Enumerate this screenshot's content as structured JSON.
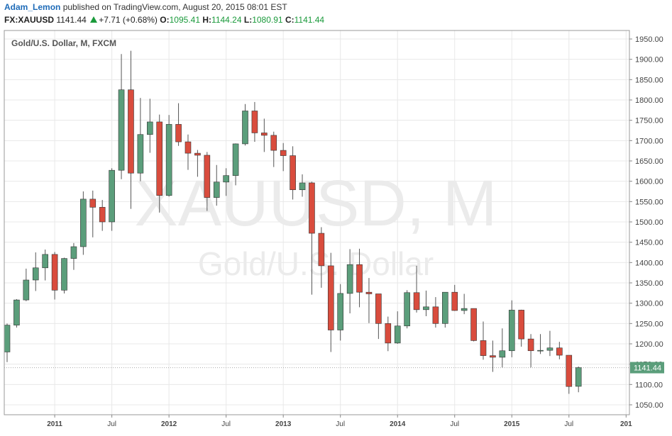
{
  "header": {
    "author": "Adam_Lemon",
    "published_text": "published on TradingView.com, August 20, 2015 08:01 EST",
    "symbol": "FX:XAUUSD",
    "last": "1141.44",
    "change": "+7.71 (+0.68%)",
    "o_label": "O:",
    "o_value": "1095.41",
    "h_label": "H:",
    "h_value": "1144.24",
    "l_label": "L:",
    "l_value": "1080.91",
    "c_label": "C:",
    "c_value": "1141.44"
  },
  "colors": {
    "up": "#5b9e7b",
    "down": "#d94c3d",
    "wick": "#555555",
    "grid": "#e8e8e8",
    "axis_text": "#444444",
    "watermark": "#ebebeb",
    "price_label_bg": "#5b9e7b",
    "accent_green": "#1a9a3b"
  },
  "chart_data": {
    "type": "candlestick",
    "title": "Gold/U.S. Dollar, M, FXCM",
    "watermark": [
      "XAUUSD, M",
      "Gold/U.S. Dollar"
    ],
    "timeframe": "M",
    "ylim": [
      1025,
      1960
    ],
    "y_ticks": [
      1050,
      1100,
      1150,
      1200,
      1250,
      1300,
      1350,
      1400,
      1450,
      1500,
      1550,
      1600,
      1650,
      1700,
      1750,
      1800,
      1850,
      1900,
      1950
    ],
    "x_ticks": [
      {
        "label": "2011",
        "index": 5
      },
      {
        "label": "Jul",
        "index": 11
      },
      {
        "label": "2012",
        "index": 17
      },
      {
        "label": "Jul",
        "index": 23
      },
      {
        "label": "2013",
        "index": 29
      },
      {
        "label": "Jul",
        "index": 35
      },
      {
        "label": "2014",
        "index": 41
      },
      {
        "label": "Jul",
        "index": 47
      },
      {
        "label": "2015",
        "index": 53
      },
      {
        "label": "Jul",
        "index": 59
      },
      {
        "label": "201",
        "index": 65
      }
    ],
    "last_price_label": "1141.44",
    "last_price": 1141.44,
    "candles": [
      {
        "date": "2010-08",
        "o": 1180,
        "h": 1250,
        "l": 1155,
        "c": 1246
      },
      {
        "date": "2010-09",
        "o": 1246,
        "h": 1310,
        "l": 1240,
        "c": 1308
      },
      {
        "date": "2010-10",
        "o": 1308,
        "h": 1385,
        "l": 1305,
        "c": 1357
      },
      {
        "date": "2010-11",
        "o": 1357,
        "h": 1425,
        "l": 1330,
        "c": 1387
      },
      {
        "date": "2010-12",
        "o": 1387,
        "h": 1432,
        "l": 1356,
        "c": 1420
      },
      {
        "date": "2011-01",
        "o": 1420,
        "h": 1426,
        "l": 1309,
        "c": 1332
      },
      {
        "date": "2011-02",
        "o": 1332,
        "h": 1412,
        "l": 1324,
        "c": 1410
      },
      {
        "date": "2011-03",
        "o": 1410,
        "h": 1448,
        "l": 1382,
        "c": 1439
      },
      {
        "date": "2011-04",
        "o": 1439,
        "h": 1575,
        "l": 1419,
        "c": 1556
      },
      {
        "date": "2011-05",
        "o": 1556,
        "h": 1577,
        "l": 1462,
        "c": 1536
      },
      {
        "date": "2011-06",
        "o": 1536,
        "h": 1554,
        "l": 1478,
        "c": 1500
      },
      {
        "date": "2011-07",
        "o": 1500,
        "h": 1632,
        "l": 1478,
        "c": 1627
      },
      {
        "date": "2011-08",
        "o": 1627,
        "h": 1913,
        "l": 1605,
        "c": 1825
      },
      {
        "date": "2011-09",
        "o": 1825,
        "h": 1921,
        "l": 1532,
        "c": 1620
      },
      {
        "date": "2011-10",
        "o": 1620,
        "h": 1805,
        "l": 1600,
        "c": 1715
      },
      {
        "date": "2011-11",
        "o": 1715,
        "h": 1803,
        "l": 1670,
        "c": 1746
      },
      {
        "date": "2011-12",
        "o": 1746,
        "h": 1764,
        "l": 1523,
        "c": 1565
      },
      {
        "date": "2012-01",
        "o": 1565,
        "h": 1763,
        "l": 1562,
        "c": 1740
      },
      {
        "date": "2012-02",
        "o": 1740,
        "h": 1792,
        "l": 1687,
        "c": 1697
      },
      {
        "date": "2012-03",
        "o": 1697,
        "h": 1715,
        "l": 1628,
        "c": 1669
      },
      {
        "date": "2012-04",
        "o": 1669,
        "h": 1677,
        "l": 1611,
        "c": 1664
      },
      {
        "date": "2012-05",
        "o": 1664,
        "h": 1672,
        "l": 1527,
        "c": 1560
      },
      {
        "date": "2012-06",
        "o": 1560,
        "h": 1640,
        "l": 1540,
        "c": 1598
      },
      {
        "date": "2012-07",
        "o": 1598,
        "h": 1632,
        "l": 1564,
        "c": 1614
      },
      {
        "date": "2012-08",
        "o": 1614,
        "h": 1693,
        "l": 1590,
        "c": 1692
      },
      {
        "date": "2012-09",
        "o": 1692,
        "h": 1790,
        "l": 1688,
        "c": 1773
      },
      {
        "date": "2012-10",
        "o": 1773,
        "h": 1795,
        "l": 1697,
        "c": 1719
      },
      {
        "date": "2012-11",
        "o": 1719,
        "h": 1754,
        "l": 1672,
        "c": 1713
      },
      {
        "date": "2012-12",
        "o": 1713,
        "h": 1722,
        "l": 1635,
        "c": 1676
      },
      {
        "date": "2013-01",
        "o": 1676,
        "h": 1694,
        "l": 1625,
        "c": 1663
      },
      {
        "date": "2013-02",
        "o": 1663,
        "h": 1686,
        "l": 1555,
        "c": 1579
      },
      {
        "date": "2013-03",
        "o": 1579,
        "h": 1617,
        "l": 1562,
        "c": 1596
      },
      {
        "date": "2013-04",
        "o": 1596,
        "h": 1599,
        "l": 1321,
        "c": 1472
      },
      {
        "date": "2013-05",
        "o": 1472,
        "h": 1487,
        "l": 1338,
        "c": 1392
      },
      {
        "date": "2013-06",
        "o": 1392,
        "h": 1424,
        "l": 1180,
        "c": 1234
      },
      {
        "date": "2013-07",
        "o": 1234,
        "h": 1347,
        "l": 1208,
        "c": 1324
      },
      {
        "date": "2013-08",
        "o": 1324,
        "h": 1433,
        "l": 1275,
        "c": 1395
      },
      {
        "date": "2013-09",
        "o": 1395,
        "h": 1434,
        "l": 1290,
        "c": 1327
      },
      {
        "date": "2013-10",
        "o": 1327,
        "h": 1362,
        "l": 1251,
        "c": 1323
      },
      {
        "date": "2013-11",
        "o": 1323,
        "h": 1321,
        "l": 1212,
        "c": 1250
      },
      {
        "date": "2013-12",
        "o": 1250,
        "h": 1267,
        "l": 1182,
        "c": 1202
      },
      {
        "date": "2014-01",
        "o": 1202,
        "h": 1280,
        "l": 1200,
        "c": 1244
      },
      {
        "date": "2014-02",
        "o": 1244,
        "h": 1332,
        "l": 1238,
        "c": 1326
      },
      {
        "date": "2014-03",
        "o": 1326,
        "h": 1392,
        "l": 1277,
        "c": 1284
      },
      {
        "date": "2014-04",
        "o": 1284,
        "h": 1331,
        "l": 1268,
        "c": 1291
      },
      {
        "date": "2014-05",
        "o": 1291,
        "h": 1315,
        "l": 1240,
        "c": 1250
      },
      {
        "date": "2014-06",
        "o": 1250,
        "h": 1325,
        "l": 1240,
        "c": 1327
      },
      {
        "date": "2014-07",
        "o": 1327,
        "h": 1345,
        "l": 1281,
        "c": 1282
      },
      {
        "date": "2014-08",
        "o": 1282,
        "h": 1323,
        "l": 1273,
        "c": 1287
      },
      {
        "date": "2014-09",
        "o": 1287,
        "h": 1287,
        "l": 1206,
        "c": 1208
      },
      {
        "date": "2014-10",
        "o": 1208,
        "h": 1255,
        "l": 1161,
        "c": 1171
      },
      {
        "date": "2014-11",
        "o": 1171,
        "h": 1208,
        "l": 1131,
        "c": 1167
      },
      {
        "date": "2014-12",
        "o": 1167,
        "h": 1238,
        "l": 1142,
        "c": 1183
      },
      {
        "date": "2015-01",
        "o": 1183,
        "h": 1307,
        "l": 1167,
        "c": 1283
      },
      {
        "date": "2015-02",
        "o": 1283,
        "h": 1284,
        "l": 1193,
        "c": 1212
      },
      {
        "date": "2015-03",
        "o": 1212,
        "h": 1224,
        "l": 1142,
        "c": 1183
      },
      {
        "date": "2015-04",
        "o": 1183,
        "h": 1224,
        "l": 1175,
        "c": 1184
      },
      {
        "date": "2015-05",
        "o": 1184,
        "h": 1232,
        "l": 1170,
        "c": 1190
      },
      {
        "date": "2015-06",
        "o": 1190,
        "h": 1205,
        "l": 1162,
        "c": 1172
      },
      {
        "date": "2015-07",
        "o": 1172,
        "h": 1168,
        "l": 1077,
        "c": 1095
      },
      {
        "date": "2015-08",
        "o": 1095.41,
        "h": 1144.24,
        "l": 1080.91,
        "c": 1141.44
      }
    ]
  }
}
